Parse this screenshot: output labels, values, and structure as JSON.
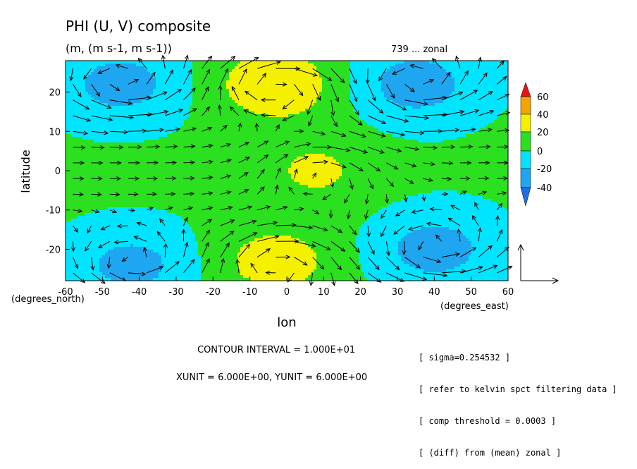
{
  "chart_data": {
    "type": "heatmap",
    "title": "PHI (U, V) composite",
    "subtitle": "(m, (m s-1, m s-1))",
    "right_note": "739 ... zonal",
    "xlabel": "lon",
    "ylabel": "latitude",
    "x_unit_label": "(degrees_east)",
    "y_unit_label": "(degrees_north)",
    "xlim": [
      -60,
      60
    ],
    "ylim": [
      -28,
      28
    ],
    "x_ticks": [
      "-60",
      "-50",
      "-40",
      "-30",
      "-20",
      "-10",
      "0",
      "10",
      "20",
      "30",
      "40",
      "50",
      "60"
    ],
    "x_tick_values": [
      -60,
      -50,
      -40,
      -30,
      -20,
      -10,
      0,
      10,
      20,
      30,
      40,
      50,
      60
    ],
    "y_ticks": [
      "20",
      "10",
      "0",
      "-10",
      "-20"
    ],
    "y_tick_values": [
      20,
      10,
      0,
      -10,
      -20
    ],
    "colorbar": {
      "labels": [
        "60",
        "40",
        "20",
        "0",
        "-20",
        "-40"
      ],
      "levels": [
        -50,
        -40,
        -20,
        0,
        20,
        40,
        60,
        70
      ],
      "colors": [
        "#1e6fe6",
        "#1ea7f0",
        "#00e5ff",
        "#2be01e",
        "#f5f000",
        "#f5a300",
        "#e81414"
      ]
    },
    "contour_levels": [
      -40,
      -30,
      -20,
      -10,
      0,
      10,
      20,
      30,
      40
    ],
    "field_centers": [
      {
        "lon": -45,
        "lat": 22,
        "value": -32,
        "note": "low NW"
      },
      {
        "lon": -42,
        "lat": -24,
        "value": -30,
        "note": "low SW"
      },
      {
        "lon": -3,
        "lat": 22,
        "value": 38,
        "note": "high N"
      },
      {
        "lon": -3,
        "lat": -23,
        "value": 30,
        "note": "high S"
      },
      {
        "lon": 35,
        "lat": 22,
        "value": -34,
        "note": "low NE"
      },
      {
        "lon": 40,
        "lat": -20,
        "value": -33,
        "note": "low SE"
      },
      {
        "lon": 8,
        "lat": 0,
        "value": 22,
        "note": "equatorial ridge"
      }
    ],
    "grid": false,
    "vector_reference": true
  },
  "footer": {
    "contour_interval": "CONTOUR INTERVAL = 1.000E+01",
    "units": "XUNIT = 6.000E+00, YUNIT = 6.000E+00"
  },
  "info_box": {
    "lines": [
      "[ sigma=0.254532 ]",
      "[ refer to kelvin spct filtering data ]",
      "[ comp threshold = 0.0003 ]",
      "[ (diff) from (mean) zonal ]"
    ]
  }
}
